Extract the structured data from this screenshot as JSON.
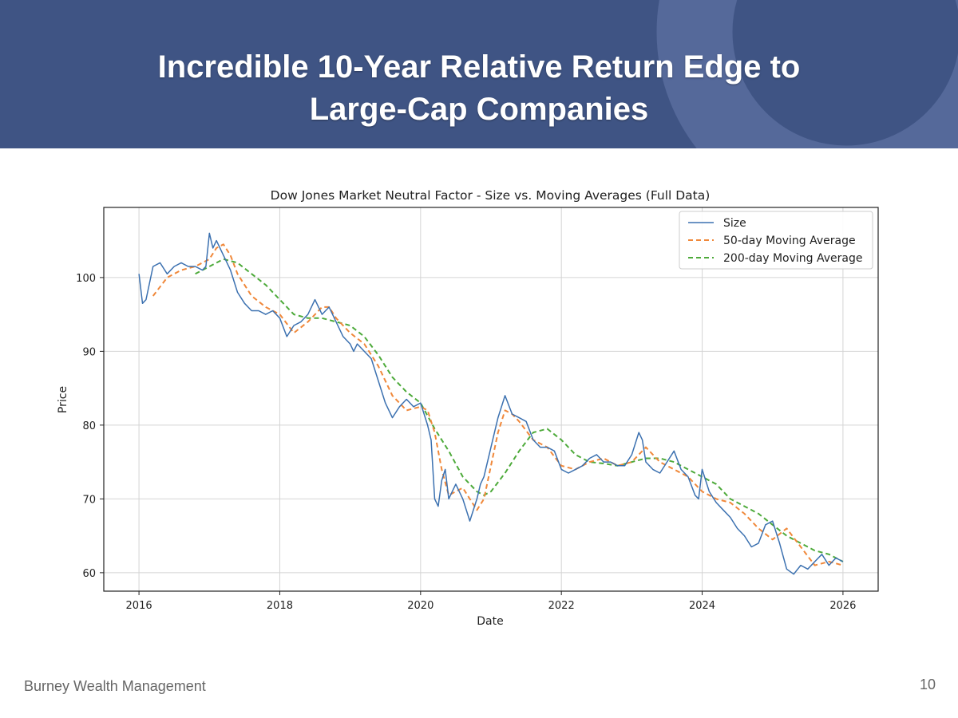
{
  "slide": {
    "title_line1": "Incredible 10-Year Relative Return Edge to",
    "title_line2": "Large-Cap Companies",
    "company": "Burney Wealth Management",
    "page_number": "10"
  },
  "colors": {
    "header_bg": "#3f5484",
    "size": "#3c71b0",
    "ma50": "#f0883a",
    "ma200": "#4daa3a"
  },
  "chart_data": {
    "type": "line",
    "title": "Dow Jones Market Neutral Factor - Size vs. Moving Averages (Full Data)",
    "xlabel": "Date",
    "ylabel": "Price",
    "xlim": [
      2015.5,
      2026.5
    ],
    "ylim": [
      57.5,
      109.5
    ],
    "grid": true,
    "legend_position": "top-right",
    "x_ticks": [
      2016,
      2018,
      2020,
      2022,
      2024,
      2026
    ],
    "x_tick_labels": [
      "2016",
      "2018",
      "2020",
      "2022",
      "2024",
      "2026"
    ],
    "y_ticks": [
      60,
      70,
      80,
      90,
      100
    ],
    "y_tick_labels": [
      "60",
      "70",
      "80",
      "90",
      "100"
    ],
    "series": [
      {
        "name": "Size",
        "style": "solid",
        "x": [
          2016.0,
          2016.05,
          2016.1,
          2016.2,
          2016.3,
          2016.4,
          2016.5,
          2016.6,
          2016.7,
          2016.8,
          2016.9,
          2016.95,
          2017.0,
          2017.05,
          2017.1,
          2017.2,
          2017.3,
          2017.4,
          2017.5,
          2017.6,
          2017.7,
          2017.8,
          2017.9,
          2018.0,
          2018.1,
          2018.2,
          2018.3,
          2018.4,
          2018.5,
          2018.55,
          2018.6,
          2018.7,
          2018.8,
          2018.9,
          2019.0,
          2019.05,
          2019.1,
          2019.2,
          2019.3,
          2019.4,
          2019.5,
          2019.6,
          2019.7,
          2019.8,
          2019.9,
          2020.0,
          2020.1,
          2020.15,
          2020.2,
          2020.25,
          2020.3,
          2020.35,
          2020.4,
          2020.45,
          2020.5,
          2020.6,
          2020.7,
          2020.8,
          2020.85,
          2020.9,
          2021.0,
          2021.1,
          2021.2,
          2021.3,
          2021.4,
          2021.5,
          2021.6,
          2021.7,
          2021.8,
          2021.9,
          2022.0,
          2022.1,
          2022.2,
          2022.3,
          2022.4,
          2022.5,
          2022.6,
          2022.7,
          2022.8,
          2022.9,
          2023.0,
          2023.1,
          2023.15,
          2023.2,
          2023.3,
          2023.4,
          2023.5,
          2023.6,
          2023.7,
          2023.8,
          2023.9,
          2023.95,
          2024.0,
          2024.1,
          2024.2,
          2024.3,
          2024.4,
          2024.5,
          2024.6,
          2024.7,
          2024.8,
          2024.9,
          2025.0,
          2025.1,
          2025.2,
          2025.3,
          2025.4,
          2025.5,
          2025.6,
          2025.7,
          2025.8,
          2025.9,
          2026.0
        ],
        "values": [
          100.5,
          96.5,
          97,
          101.5,
          102,
          100.5,
          101.5,
          102,
          101.5,
          101.5,
          101,
          101.5,
          106,
          104,
          105,
          103,
          101,
          98,
          96.5,
          95.5,
          95.5,
          95,
          95.5,
          94.5,
          92,
          93.5,
          94,
          95,
          97,
          96,
          95,
          96,
          94,
          92,
          91,
          90,
          91,
          90,
          89,
          86,
          83,
          81,
          82.5,
          83.5,
          82.5,
          83,
          80,
          78,
          70,
          69,
          72.5,
          74,
          70,
          71,
          72,
          70,
          67,
          70,
          72,
          73,
          77,
          81,
          84,
          81.5,
          81,
          80.5,
          78,
          77,
          77,
          76.5,
          74,
          73.5,
          74,
          74.5,
          75.5,
          76,
          75,
          75,
          74.5,
          74.5,
          76,
          79,
          78,
          75,
          74,
          73.5,
          75,
          76.5,
          74,
          73,
          70.5,
          70,
          74,
          71,
          69.5,
          68.5,
          67.5,
          66,
          65,
          63.5,
          64,
          66.5,
          67,
          64,
          60.5,
          59.8,
          61,
          60.5,
          61.5,
          62.5,
          61,
          62,
          61.5
        ]
      },
      {
        "name": "50-day Moving Average",
        "style": "dashed",
        "x": [
          2016.2,
          2016.4,
          2016.6,
          2016.8,
          2017.0,
          2017.1,
          2017.2,
          2017.3,
          2017.4,
          2017.6,
          2017.8,
          2018.0,
          2018.2,
          2018.4,
          2018.6,
          2018.7,
          2018.8,
          2019.0,
          2019.2,
          2019.4,
          2019.6,
          2019.8,
          2020.0,
          2020.1,
          2020.2,
          2020.3,
          2020.4,
          2020.5,
          2020.6,
          2020.7,
          2020.8,
          2020.9,
          2021.0,
          2021.1,
          2021.2,
          2021.3,
          2021.4,
          2021.6,
          2021.8,
          2022.0,
          2022.2,
          2022.4,
          2022.6,
          2022.8,
          2023.0,
          2023.2,
          2023.4,
          2023.6,
          2023.8,
          2024.0,
          2024.2,
          2024.4,
          2024.6,
          2024.8,
          2025.0,
          2025.2,
          2025.4,
          2025.6,
          2025.8,
          2026.0
        ],
        "values": [
          97.5,
          100,
          101,
          101.5,
          102.5,
          104,
          104.5,
          103,
          100.5,
          97.5,
          96,
          95,
          92.5,
          94,
          96,
          96,
          94.5,
          92.5,
          91,
          88,
          84,
          82,
          82.5,
          82,
          79,
          74,
          70.5,
          71,
          71.5,
          70,
          68.5,
          70,
          74.5,
          79,
          82,
          81.5,
          80.5,
          78,
          77,
          74.5,
          74,
          75,
          75.5,
          74.5,
          75,
          77,
          75,
          74,
          73,
          71,
          70,
          69.5,
          68,
          66,
          64.5,
          66,
          63.5,
          61,
          61.5,
          61
        ]
      },
      {
        "name": "200-day Moving Average",
        "style": "dashed",
        "x": [
          2016.8,
          2017.0,
          2017.2,
          2017.4,
          2017.6,
          2017.8,
          2018.0,
          2018.2,
          2018.4,
          2018.6,
          2018.8,
          2019.0,
          2019.2,
          2019.4,
          2019.6,
          2019.8,
          2020.0,
          2020.2,
          2020.4,
          2020.6,
          2020.8,
          2020.9,
          2021.0,
          2021.2,
          2021.4,
          2021.6,
          2021.8,
          2022.0,
          2022.2,
          2022.4,
          2022.6,
          2022.8,
          2023.0,
          2023.2,
          2023.4,
          2023.6,
          2023.8,
          2024.0,
          2024.2,
          2024.4,
          2024.6,
          2024.8,
          2025.0,
          2025.2,
          2025.4,
          2025.6,
          2025.8,
          2026.0
        ],
        "values": [
          100.5,
          101.5,
          102.5,
          102,
          100.5,
          99,
          97,
          95,
          94.5,
          94.5,
          94,
          93.5,
          92,
          89.5,
          86.5,
          84.5,
          83,
          79.5,
          76.5,
          73,
          71,
          70.5,
          71,
          73.5,
          76.5,
          79,
          79.5,
          78,
          76,
          75,
          74.8,
          74.5,
          75,
          75.5,
          75.5,
          75,
          74,
          73,
          72,
          70,
          69,
          68,
          66.5,
          65,
          64,
          63,
          62.5,
          61.5
        ]
      }
    ]
  }
}
